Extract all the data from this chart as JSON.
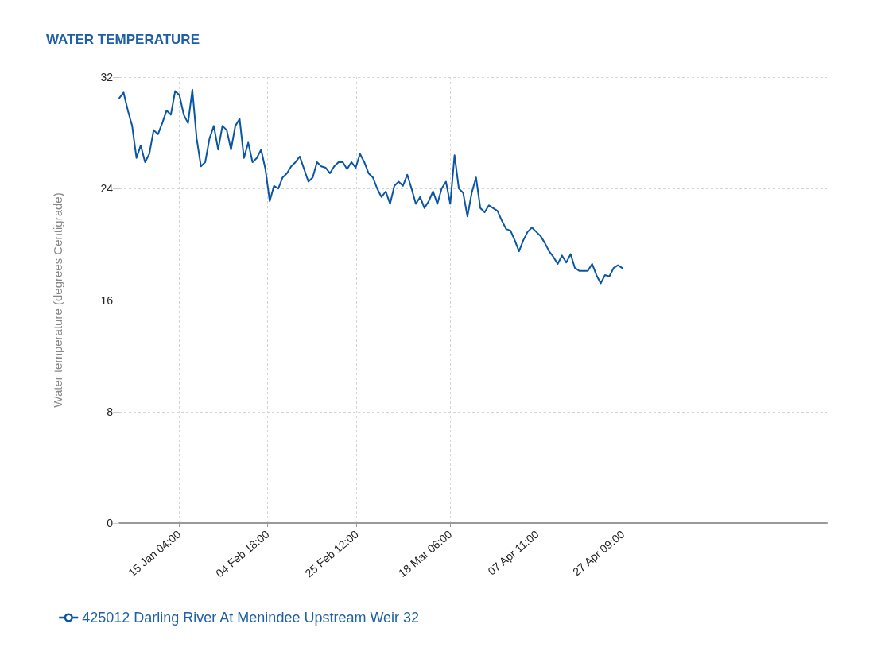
{
  "chart_data": {
    "type": "line",
    "title": "WATER TEMPERATURE",
    "ylabel": "Water temperature (degrees Centigrade)",
    "x": [
      "--01-01T06:00",
      "--01-02T06:00",
      "--01-03T06:00",
      "--01-04T06:00",
      "--01-05T06:00",
      "--01-06T06:00",
      "--01-07T06:00",
      "--01-08T06:00",
      "--01-09T06:00",
      "--01-10T06:00",
      "--01-11T06:00",
      "--01-12T06:00",
      "--01-13T06:00",
      "--01-14T06:00",
      "--01-15T06:00",
      "--01-16T06:00",
      "--01-17T06:00",
      "--01-18T06:00",
      "--01-19T06:00",
      "--01-20T06:00",
      "--01-21T06:00",
      "--01-22T06:00",
      "--01-23T06:00",
      "--01-24T06:00",
      "--01-25T06:00",
      "--01-26T06:00",
      "--01-27T06:00",
      "--01-28T06:00",
      "--01-29T06:00",
      "--01-30T06:00",
      "--01-31T06:00",
      "--02-01T06:00",
      "--02-02T06:00",
      "--02-03T06:00",
      "--02-04T06:00",
      "--02-05T06:00",
      "--02-06T06:00",
      "--02-07T06:00",
      "--02-08T06:00",
      "--02-09T06:00",
      "--02-10T06:00",
      "--02-11T06:00",
      "--02-12T06:00",
      "--02-13T06:00",
      "--02-14T06:00",
      "--02-15T06:00",
      "--02-16T06:00",
      "--02-17T06:00",
      "--02-18T06:00",
      "--02-19T06:00",
      "--02-20T06:00",
      "--02-21T06:00",
      "--02-22T06:00",
      "--02-23T06:00",
      "--02-24T06:00",
      "--02-25T06:00",
      "--02-26T06:00",
      "--02-27T06:00",
      "--02-28T06:00",
      "--02-29T06:00",
      "--03-01T06:00",
      "--03-02T06:00",
      "--03-03T06:00",
      "--03-04T06:00",
      "--03-05T06:00",
      "--03-06T06:00",
      "--03-07T06:00",
      "--03-08T06:00",
      "--03-09T06:00",
      "--03-10T06:00",
      "--03-11T06:00",
      "--03-12T06:00",
      "--03-13T06:00",
      "--03-14T06:00",
      "--03-15T06:00",
      "--03-16T06:00",
      "--03-17T06:00",
      "--03-18T06:00",
      "--03-19T06:00",
      "--03-20T06:00",
      "--03-21T06:00",
      "--03-22T06:00",
      "--03-23T06:00",
      "--03-24T06:00",
      "--03-25T06:00",
      "--03-26T06:00",
      "--03-27T06:00",
      "--03-28T06:00",
      "--03-29T06:00",
      "--03-30T06:00",
      "--03-31T06:00",
      "--04-01T06:00",
      "--04-02T06:00",
      "--04-03T06:00",
      "--04-04T06:00",
      "--04-05T06:00",
      "--04-06T06:00",
      "--04-07T06:00",
      "--04-08T06:00",
      "--04-09T06:00",
      "--04-10T06:00",
      "--04-11T06:00",
      "--04-12T06:00",
      "--04-13T06:00",
      "--04-14T06:00",
      "--04-15T06:00",
      "--04-16T06:00",
      "--04-17T06:00",
      "--04-18T06:00",
      "--04-19T06:00",
      "--04-20T06:00",
      "--04-21T06:00",
      "--04-22T06:00",
      "--04-23T06:00",
      "--04-24T06:00",
      "--04-25T06:00",
      "--04-26T06:00",
      "--04-27T06:00"
    ],
    "series": [
      {
        "name": "425012 Darling River At Menindee Upstream Weir 32",
        "color": "#0b56a4",
        "values": [
          30.5,
          30.9,
          29.6,
          28.5,
          26.2,
          27.1,
          25.9,
          26.5,
          28.2,
          27.9,
          28.7,
          29.6,
          29.3,
          31.0,
          30.7,
          29.3,
          28.7,
          31.1,
          27.6,
          25.6,
          25.9,
          27.6,
          28.5,
          26.8,
          28.5,
          28.2,
          26.8,
          28.5,
          29.0,
          26.2,
          27.3,
          25.9,
          26.2,
          26.8,
          25.4,
          23.1,
          24.2,
          24.0,
          24.8,
          25.1,
          25.6,
          25.9,
          26.3,
          25.4,
          24.5,
          24.8,
          25.9,
          25.6,
          25.5,
          25.1,
          25.6,
          25.9,
          25.9,
          25.4,
          25.9,
          25.5,
          26.5,
          25.9,
          25.1,
          24.8,
          24.0,
          23.4,
          23.8,
          22.9,
          24.2,
          24.5,
          24.2,
          25.0,
          24.0,
          22.9,
          23.4,
          22.6,
          23.1,
          23.8,
          22.9,
          24.0,
          24.5,
          22.9,
          26.4,
          24.0,
          23.7,
          22.0,
          23.7,
          24.8,
          22.6,
          22.3,
          22.8,
          22.6,
          22.4,
          21.7,
          21.1,
          21.0,
          20.3,
          19.5,
          20.3,
          20.9,
          21.2,
          20.9,
          20.6,
          20.1,
          19.5,
          19.1,
          18.6,
          19.2,
          18.7,
          19.3,
          18.3,
          18.1,
          18.1,
          18.1,
          18.6,
          17.8,
          17.2,
          17.8,
          17.7,
          18.3,
          18.5,
          18.3
        ]
      }
    ],
    "xlim": [
      "--01-01T06:00",
      "--06-13T21:00"
    ],
    "xticks": [
      {
        "value": "--01-15T04:00",
        "label": "15 Jan 04:00"
      },
      {
        "value": "--02-04T18:00",
        "label": "04 Feb 18:00"
      },
      {
        "value": "--02-25T12:00",
        "label": "25 Feb 12:00"
      },
      {
        "value": "--03-18T06:00",
        "label": "18 Mar 06:00"
      },
      {
        "value": "--04-07T11:00",
        "label": "07 Apr 11:00"
      },
      {
        "value": "--04-27T09:00",
        "label": "27 Apr 09:00"
      }
    ],
    "ylim": [
      0,
      32
    ],
    "yticks": [
      0,
      8,
      16,
      24,
      32
    ],
    "grid": true,
    "legend": "bottom left",
    "marker": "none",
    "line_style": "solid"
  }
}
